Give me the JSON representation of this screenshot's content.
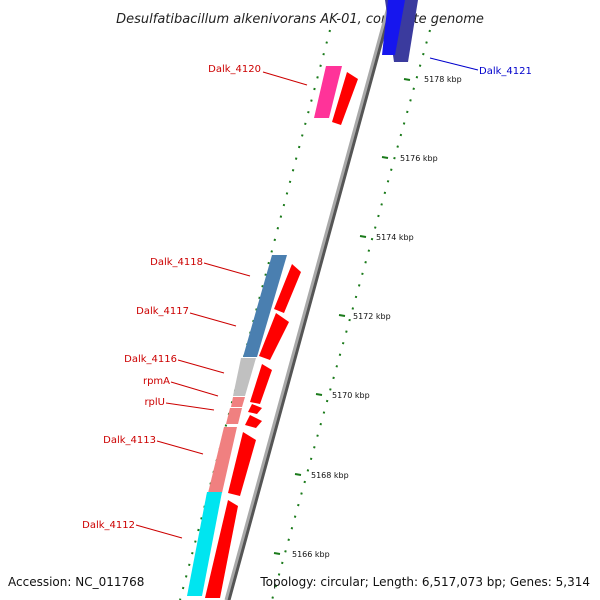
{
  "title": "Desulfatibacillum alkenivorans AK-01, complete genome",
  "accession": "Accession: NC_011768",
  "topology": "Topology: circular; Length: 6,517,073 bp; Genes: 5,314",
  "colors": {
    "cds": "#ff0000",
    "label_red": "#cc0000",
    "label_blue": "#0000cc",
    "ticks": "#1a7a1a",
    "backbone": "#8c8c8c"
  },
  "ticks": [
    "5178 kbp",
    "5176 kbp",
    "5174 kbp",
    "5172 kbp",
    "5170 kbp",
    "5168 kbp",
    "5166 kbp"
  ],
  "genes": [
    {
      "label": "Dalk_4121",
      "color": "#3b3b9e",
      "label_color": "#0000cc"
    },
    {
      "label": "Dalk_4120",
      "color": "#ff3399",
      "label_color": "#cc0000"
    },
    {
      "label": "Dalk_4118",
      "color": "#4a7fb0",
      "label_color": "#cc0000"
    },
    {
      "label": "Dalk_4117",
      "color": "#4a7fb0",
      "label_color": "#cc0000"
    },
    {
      "label": "Dalk_4116",
      "color": "#c0c0c0",
      "label_color": "#cc0000"
    },
    {
      "label": "rpmA",
      "color": "#f08080",
      "label_color": "#cc0000"
    },
    {
      "label": "rplU",
      "color": "#f08080",
      "label_color": "#cc0000"
    },
    {
      "label": "Dalk_4113",
      "color": "#f08080",
      "label_color": "#cc0000"
    },
    {
      "label": "Dalk_4112",
      "color": "#00e5f0",
      "label_color": "#cc0000"
    }
  ]
}
